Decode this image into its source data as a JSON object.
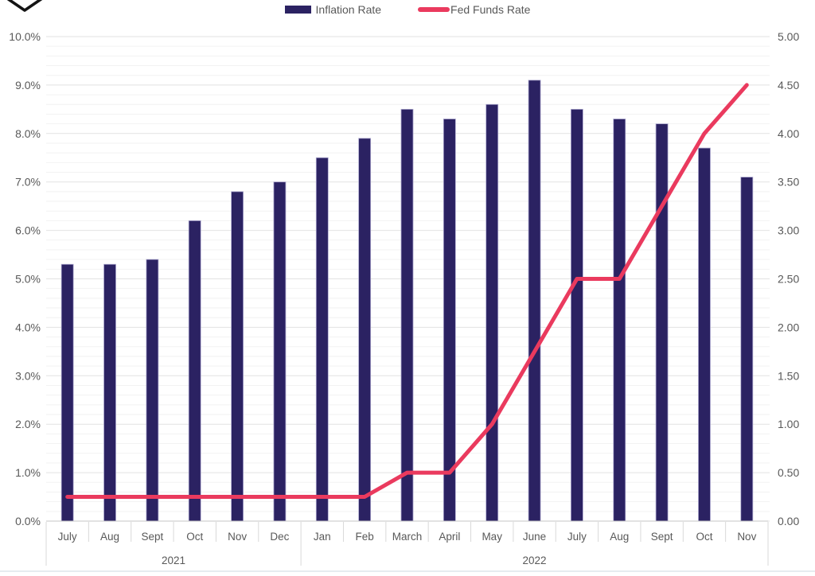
{
  "legend": {
    "items": [
      {
        "label": "Inflation Rate",
        "color": "#2B2262",
        "swatch": "bar-swatch"
      },
      {
        "label": "Fed Funds Rate",
        "color": "#EA3A5E",
        "swatch": "line-swatch"
      }
    ]
  },
  "chart_data": {
    "type": "bar+line combo",
    "categories": [
      "July",
      "Aug",
      "Sept",
      "Oct",
      "Nov",
      "Dec",
      "Jan",
      "Feb",
      "March",
      "April",
      "May",
      "June",
      "July",
      "Aug",
      "Sept",
      "Oct",
      "Nov"
    ],
    "year_groups": [
      {
        "label": "2021",
        "start": 0,
        "count": 6
      },
      {
        "label": "2022",
        "start": 6,
        "count": 11
      }
    ],
    "series": [
      {
        "name": "Inflation Rate",
        "type": "bar",
        "axis": "left",
        "color": "#2B2262",
        "edge_color": "#ABA6CE",
        "values": [
          5.3,
          5.3,
          5.4,
          6.2,
          6.8,
          7.0,
          7.5,
          7.9,
          8.5,
          8.3,
          8.6,
          9.1,
          8.5,
          8.3,
          8.2,
          7.7,
          7.1
        ]
      },
      {
        "name": "Fed Funds Rate",
        "type": "line",
        "axis": "right",
        "color": "#EA3A5E",
        "values": [
          0.25,
          0.25,
          0.25,
          0.25,
          0.25,
          0.25,
          0.25,
          0.25,
          0.5,
          0.5,
          1.0,
          1.75,
          2.5,
          2.5,
          3.25,
          4.0,
          4.5
        ]
      }
    ],
    "left_axis": {
      "min": 0,
      "max": 10,
      "major_step": 1.0,
      "minor_step": 0.2,
      "ticks": [
        "10.0%",
        "9.0%",
        "8.0%",
        "7.0%",
        "6.0%",
        "5.0%",
        "4.0%",
        "3.0%",
        "2.0%",
        "1.0%",
        "0.0%"
      ]
    },
    "right_axis": {
      "min": 0,
      "max": 5,
      "major_step": 0.5,
      "ticks": [
        "5.00",
        "4.50",
        "4.00",
        "3.50",
        "3.00",
        "2.50",
        "2.00",
        "1.50",
        "1.00",
        "0.50",
        "0.00"
      ]
    },
    "grid": {
      "major_color": "#E2E2E2",
      "minor_color": "#F2F2F2",
      "axis_line_color": "#C6C6C6",
      "separator_color": "#D9D9D9"
    },
    "legend_position": "top-center"
  },
  "colors": {
    "background": "#FFFFFF",
    "text": "#595959",
    "bottom_rule": "#DEE5EC",
    "logo": "#141414"
  }
}
